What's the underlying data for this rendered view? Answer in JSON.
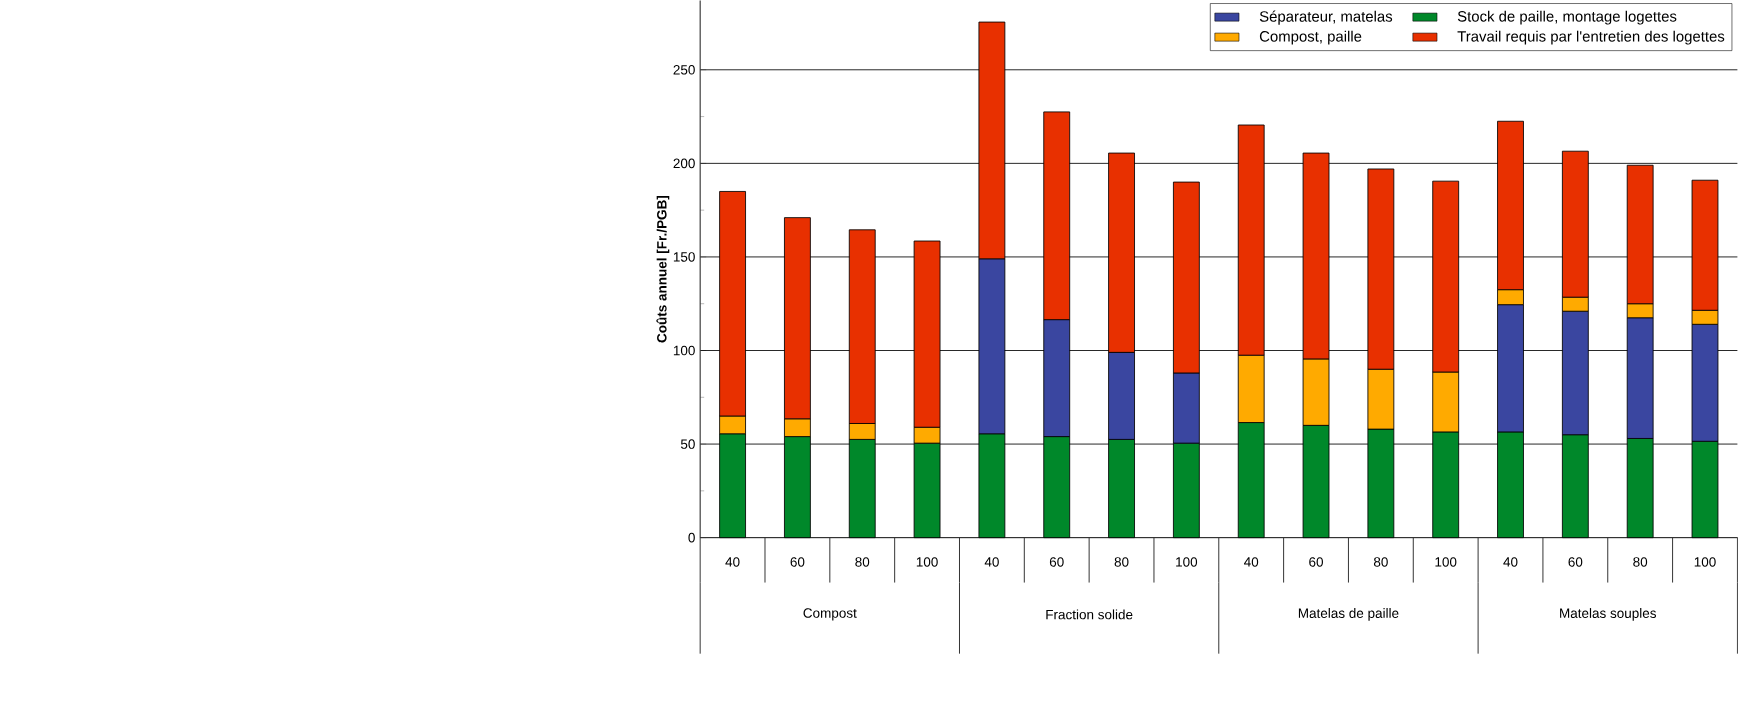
{
  "chart_data": {
    "type": "bar",
    "stacked": true,
    "ylabel": "Coûts annuel [Fr./PGB]",
    "categories": [
      "40",
      "60",
      "80",
      "100",
      "40",
      "60",
      "80",
      "100",
      "40",
      "60",
      "80",
      "100",
      "40",
      "60",
      "80",
      "100"
    ],
    "annotations": [
      "Compost",
      "Fraction solide",
      "Matelas de paille",
      "Matelas souples"
    ],
    "series": [
      {
        "name": "Stock de paille, montage logettes",
        "color": "#00882a",
        "values": [
          55.5,
          54,
          52.5,
          50.5,
          55.5,
          54,
          52.5,
          50.5,
          61.5,
          60,
          58,
          56.5,
          56.5,
          55,
          53,
          51.5
        ]
      },
      {
        "name": "Séparateur, matelas",
        "color": "#3a46a0",
        "values": [
          null,
          null,
          null,
          null,
          93.5,
          62.5,
          46.5,
          37.5,
          null,
          null,
          null,
          null,
          68,
          66,
          64.5,
          62.5
        ]
      },
      {
        "name": "Compost, paille",
        "color": "#ffaa00",
        "values": [
          9.5,
          9.5,
          8.5,
          8.5,
          null,
          null,
          null,
          null,
          36,
          35.5,
          32,
          32,
          8,
          7.5,
          7.5,
          7.5
        ]
      },
      {
        "name": "Travail requis par l'entretien des logettes",
        "color": "#e83000",
        "values": [
          120,
          107.5,
          103.5,
          99.5,
          126.5,
          111,
          106.5,
          102,
          123,
          110,
          107,
          102,
          90,
          78,
          74,
          69.5
        ]
      }
    ],
    "ylim": [
      0,
      287
    ],
    "yticks": [
      0,
      50,
      100,
      150,
      200,
      250
    ],
    "grid": "y",
    "legend": "top right"
  }
}
